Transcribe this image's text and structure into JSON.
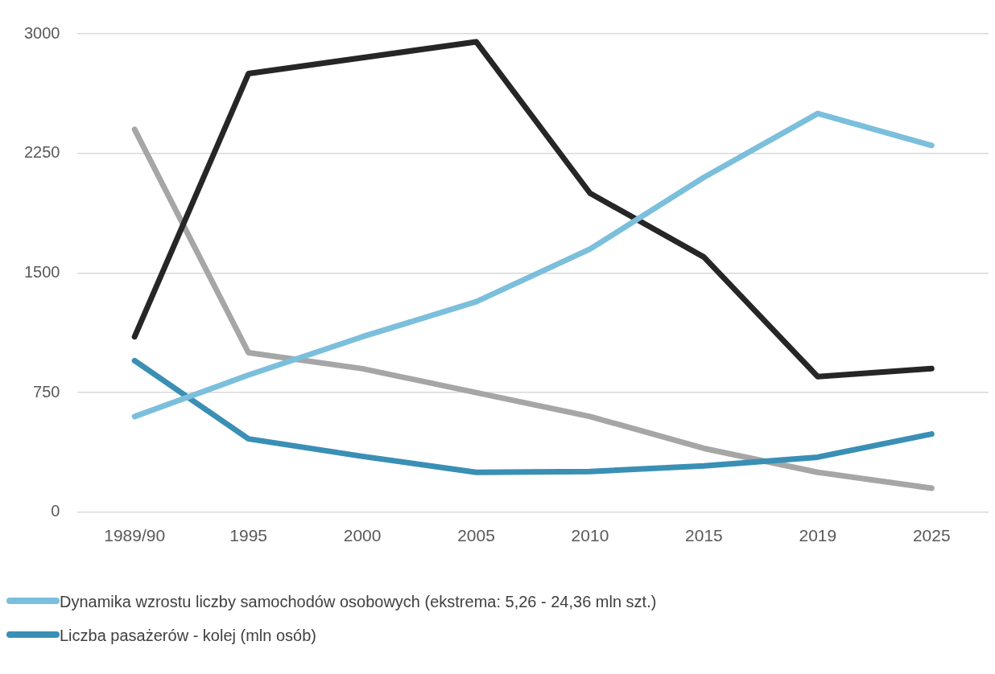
{
  "chart_data": {
    "type": "line",
    "categories": [
      "1989/90",
      "1995",
      "2000",
      "2005",
      "2010",
      "2015",
      "2019",
      "2025"
    ],
    "series": [
      {
        "name": "Dynamika wzrostu liczby samochodów osobowych (ekstrema: 5,26 - 24,36 mln szt.)",
        "color": "#7bbfdc",
        "values": [
          600,
          860,
          1100,
          1320,
          1650,
          2100,
          2500,
          2300
        ]
      },
      {
        "name": "Liczba pasażerów - kolej (mln osób)",
        "color": "#3a8fb5",
        "values": [
          950,
          460,
          350,
          250,
          255,
          290,
          345,
          490
        ]
      },
      {
        "color": "#262626",
        "values": [
          1100,
          2750,
          2850,
          2950,
          2000,
          1600,
          850,
          900
        ]
      },
      {
        "color": "#a6a6a6",
        "values": [
          2400,
          1000,
          900,
          750,
          600,
          400,
          250,
          150
        ]
      }
    ],
    "ylim": [
      0,
      3000
    ],
    "yticks": [
      0,
      750,
      1500,
      2250,
      3000
    ],
    "grid": "y",
    "legend": "bottom left",
    "marker": "none",
    "line_style": "solid"
  }
}
